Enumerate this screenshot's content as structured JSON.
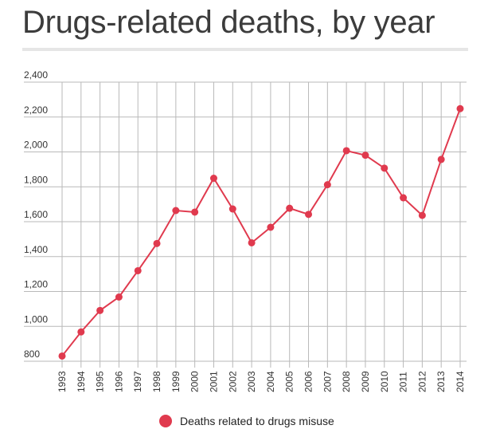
{
  "title": "Drugs-related deaths, by year",
  "colors": {
    "series": "#e03a4e",
    "grid": "#b9b9b9",
    "axis": "#333333",
    "rule": "#e6e6e6"
  },
  "chart_data": {
    "type": "line",
    "title": "Drugs-related deaths, by year",
    "xlabel": "",
    "ylabel": "",
    "x": [
      "1993",
      "1994",
      "1995",
      "1996",
      "1997",
      "1998",
      "1999",
      "2000",
      "2001",
      "2002",
      "2003",
      "2004",
      "2005",
      "2006",
      "2007",
      "2008",
      "2009",
      "2010",
      "2011",
      "2012",
      "2013",
      "2014"
    ],
    "series": [
      {
        "name": "Deaths related to drugs misuse",
        "values": [
          830,
          968,
          1091,
          1168,
          1319,
          1475,
          1664,
          1655,
          1849,
          1673,
          1479,
          1568,
          1677,
          1642,
          1812,
          2007,
          1981,
          1907,
          1737,
          1636,
          1957,
          2248
        ]
      }
    ],
    "yticks": [
      "800",
      "1,000",
      "1,200",
      "1,400",
      "1,600",
      "1,800",
      "2,000",
      "2,200",
      "2,400"
    ],
    "ylim": [
      800,
      2400
    ],
    "grid": true,
    "legend": "bottom-center"
  }
}
